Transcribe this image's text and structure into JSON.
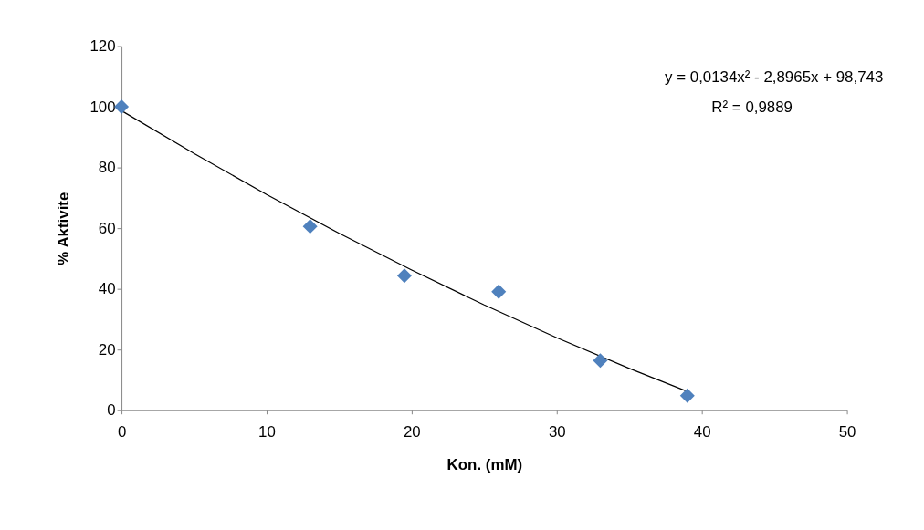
{
  "chart_data": {
    "type": "scatter",
    "xlabel": "Kon. (mM)",
    "ylabel": "% Aktivite",
    "xlim": [
      0,
      50
    ],
    "xticks": [
      0,
      10,
      20,
      30,
      40,
      50
    ],
    "ylim": [
      0,
      120
    ],
    "yticks": [
      0,
      20,
      40,
      60,
      80,
      100,
      120
    ],
    "grid": false,
    "marker": "diamond",
    "annotations": [
      "y = 0,0134x² - 2,8965x + 98,743",
      "R² = 0,9889"
    ],
    "series": [
      {
        "type": "line",
        "color": "#000000",
        "line_style": "solid",
        "marker": "none",
        "x": [
          0,
          5,
          10,
          15,
          20,
          25,
          30,
          35,
          39
        ],
        "values": [
          98.7,
          84.6,
          71.1,
          58.3,
          46.2,
          34.7,
          23.9,
          13.8,
          6.2
        ]
      },
      {
        "color": "#4f81bd",
        "x": [
          0,
          13,
          19.5,
          26,
          33,
          39
        ],
        "values": [
          100,
          60.6,
          44.3,
          39.1,
          16.4,
          4.8
        ]
      }
    ]
  }
}
